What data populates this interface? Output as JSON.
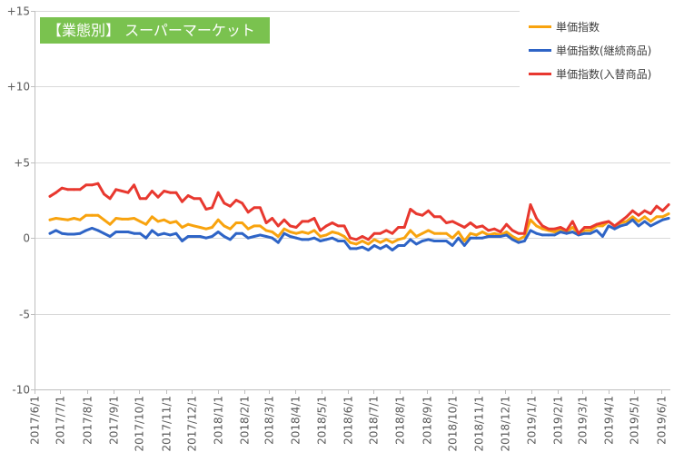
{
  "chart_data": {
    "type": "line",
    "title": "【業態別】 スーパーマーケット",
    "legend": "top-right",
    "grid": true,
    "xlim": [
      "2017-06-01",
      "2019-06-12"
    ],
    "ylim": [
      -10,
      15
    ],
    "y_ticks": [
      15,
      10,
      5,
      0,
      -5,
      -10
    ],
    "y_tick_labels": [
      "+15",
      "+10",
      "+5",
      "0",
      "-5",
      "-10"
    ],
    "x_tick_labels": [
      "2017/6/1",
      "2017/7/1",
      "2017/8/1",
      "2017/9/1",
      "2017/10/1",
      "2017/11/1",
      "2017/12/1",
      "2018/1/1",
      "2018/2/1",
      "2018/3/1",
      "2018/4/1",
      "2018/5/1",
      "2018/6/1",
      "2018/7/1",
      "2018/8/1",
      "2018/9/1",
      "2018/10/1",
      "2018/11/1",
      "2018/12/1",
      "2019/1/1",
      "2019/2/1",
      "2019/3/1",
      "2019/4/1",
      "2019/5/1",
      "2019/6/1"
    ],
    "x": [
      "2017-06-19",
      "2017-06-26",
      "2017-07-03",
      "2017-07-10",
      "2017-07-17",
      "2017-07-24",
      "2017-07-31",
      "2017-08-07",
      "2017-08-14",
      "2017-08-21",
      "2017-08-28",
      "2017-09-04",
      "2017-09-11",
      "2017-09-18",
      "2017-09-25",
      "2017-10-02",
      "2017-10-09",
      "2017-10-16",
      "2017-10-23",
      "2017-10-30",
      "2017-11-06",
      "2017-11-13",
      "2017-11-20",
      "2017-11-27",
      "2017-12-04",
      "2017-12-11",
      "2017-12-18",
      "2017-12-25",
      "2018-01-01",
      "2018-01-08",
      "2018-01-15",
      "2018-01-22",
      "2018-01-29",
      "2018-02-05",
      "2018-02-12",
      "2018-02-19",
      "2018-02-26",
      "2018-03-05",
      "2018-03-12",
      "2018-03-19",
      "2018-03-26",
      "2018-04-02",
      "2018-04-09",
      "2018-04-16",
      "2018-04-23",
      "2018-04-30",
      "2018-05-07",
      "2018-05-14",
      "2018-05-21",
      "2018-05-28",
      "2018-06-04",
      "2018-06-11",
      "2018-06-18",
      "2018-06-25",
      "2018-07-02",
      "2018-07-09",
      "2018-07-16",
      "2018-07-23",
      "2018-07-30",
      "2018-08-06",
      "2018-08-13",
      "2018-08-20",
      "2018-08-27",
      "2018-09-03",
      "2018-09-10",
      "2018-09-17",
      "2018-09-24",
      "2018-10-01",
      "2018-10-08",
      "2018-10-15",
      "2018-10-22",
      "2018-10-29",
      "2018-11-05",
      "2018-11-12",
      "2018-11-19",
      "2018-11-26",
      "2018-12-03",
      "2018-12-10",
      "2018-12-17",
      "2018-12-24",
      "2018-12-31",
      "2019-01-07",
      "2019-01-14",
      "2019-01-21",
      "2019-01-28",
      "2019-02-04",
      "2019-02-11",
      "2019-02-18",
      "2019-02-25",
      "2019-03-04",
      "2019-03-11",
      "2019-03-18",
      "2019-03-25",
      "2019-04-01",
      "2019-04-08",
      "2019-04-15",
      "2019-04-22",
      "2019-04-29",
      "2019-05-06",
      "2019-05-13",
      "2019-05-20",
      "2019-05-27",
      "2019-06-03",
      "2019-06-10"
    ],
    "series": [
      {
        "name": "単価指数",
        "color": "#f8a30e",
        "values": [
          1.2,
          1.3,
          1.25,
          1.2,
          1.3,
          1.2,
          1.5,
          1.5,
          1.5,
          1.2,
          0.9,
          1.3,
          1.25,
          1.25,
          1.3,
          1.1,
          0.9,
          1.4,
          1.1,
          1.2,
          1.0,
          1.1,
          0.7,
          0.9,
          0.8,
          0.7,
          0.6,
          0.7,
          1.2,
          0.8,
          0.6,
          1.0,
          1.0,
          0.6,
          0.8,
          0.8,
          0.5,
          0.4,
          0.1,
          0.6,
          0.4,
          0.3,
          0.4,
          0.3,
          0.5,
          0.1,
          0.2,
          0.4,
          0.3,
          0.1,
          -0.3,
          -0.4,
          -0.2,
          -0.4,
          -0.1,
          -0.3,
          -0.1,
          -0.3,
          -0.1,
          0.0,
          0.5,
          0.1,
          0.3,
          0.5,
          0.3,
          0.3,
          0.3,
          0.0,
          0.4,
          -0.2,
          0.3,
          0.2,
          0.4,
          0.2,
          0.3,
          0.2,
          0.4,
          0.1,
          -0.1,
          0.1,
          1.2,
          0.8,
          0.6,
          0.5,
          0.4,
          0.6,
          0.4,
          0.7,
          0.3,
          0.5,
          0.5,
          0.8,
          0.8,
          1.1,
          0.8,
          1.0,
          1.1,
          1.4,
          1.1,
          1.4,
          1.1,
          1.4,
          1.4,
          1.6
        ]
      },
      {
        "name": "単価指数(継続商品)",
        "color": "#2e64c6",
        "values": [
          0.3,
          0.5,
          0.3,
          0.25,
          0.25,
          0.3,
          0.5,
          0.65,
          0.5,
          0.3,
          0.1,
          0.4,
          0.4,
          0.4,
          0.3,
          0.3,
          0.0,
          0.5,
          0.2,
          0.3,
          0.2,
          0.3,
          -0.2,
          0.1,
          0.1,
          0.1,
          0.0,
          0.1,
          0.4,
          0.1,
          -0.1,
          0.3,
          0.3,
          0.0,
          0.1,
          0.2,
          0.1,
          0.0,
          -0.3,
          0.3,
          0.1,
          0.0,
          -0.1,
          -0.1,
          0.0,
          -0.2,
          -0.1,
          0.0,
          -0.2,
          -0.2,
          -0.7,
          -0.7,
          -0.6,
          -0.8,
          -0.5,
          -0.7,
          -0.5,
          -0.8,
          -0.5,
          -0.5,
          -0.1,
          -0.4,
          -0.2,
          -0.1,
          -0.2,
          -0.2,
          -0.2,
          -0.5,
          0.0,
          -0.5,
          0.0,
          0.0,
          0.0,
          0.1,
          0.1,
          0.1,
          0.2,
          -0.1,
          -0.3,
          -0.2,
          0.5,
          0.3,
          0.2,
          0.2,
          0.2,
          0.4,
          0.3,
          0.4,
          0.2,
          0.3,
          0.3,
          0.5,
          0.1,
          0.8,
          0.6,
          0.8,
          0.9,
          1.2,
          0.8,
          1.1,
          0.8,
          1.0,
          1.2,
          1.3
        ]
      },
      {
        "name": "単価指数(入替商品)",
        "color": "#e8382f",
        "values": [
          2.75,
          3.0,
          3.3,
          3.2,
          3.2,
          3.2,
          3.5,
          3.5,
          3.6,
          2.9,
          2.6,
          3.2,
          3.1,
          3.0,
          3.5,
          2.6,
          2.6,
          3.1,
          2.7,
          3.1,
          3.0,
          3.0,
          2.4,
          2.8,
          2.6,
          2.6,
          1.9,
          2.0,
          3.0,
          2.3,
          2.1,
          2.5,
          2.3,
          1.7,
          2.0,
          2.0,
          1.0,
          1.3,
          0.8,
          1.2,
          0.8,
          0.7,
          1.1,
          1.1,
          1.3,
          0.5,
          0.8,
          1.0,
          0.8,
          0.8,
          0.0,
          -0.1,
          0.1,
          -0.1,
          0.3,
          0.3,
          0.5,
          0.3,
          0.7,
          0.7,
          1.9,
          1.6,
          1.5,
          1.8,
          1.4,
          1.4,
          1.0,
          1.1,
          0.9,
          0.7,
          1.0,
          0.7,
          0.8,
          0.5,
          0.6,
          0.4,
          0.9,
          0.5,
          0.3,
          0.3,
          2.2,
          1.3,
          0.8,
          0.6,
          0.6,
          0.7,
          0.5,
          1.1,
          0.3,
          0.7,
          0.7,
          0.9,
          1.0,
          1.1,
          0.8,
          1.1,
          1.4,
          1.8,
          1.5,
          1.8,
          1.6,
          2.1,
          1.8,
          2.2
        ]
      }
    ]
  }
}
